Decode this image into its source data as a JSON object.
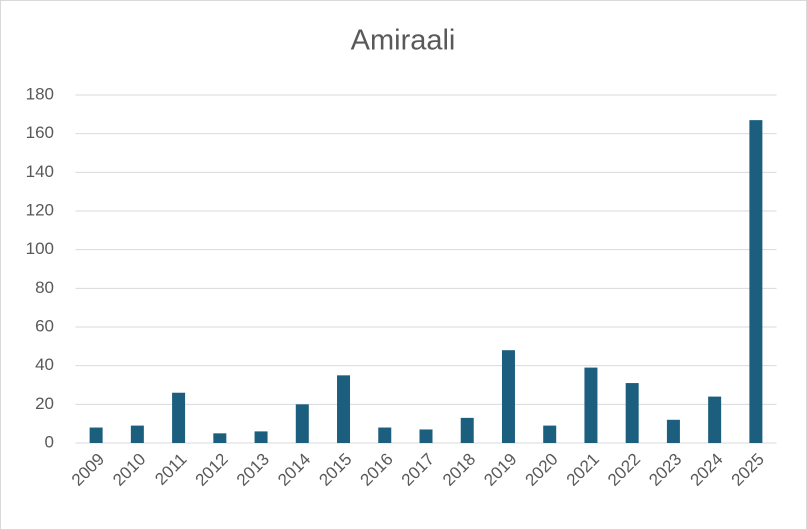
{
  "chart_data": {
    "type": "bar",
    "title": "Amiraali",
    "categories": [
      "2009",
      "2010",
      "2011",
      "2012",
      "2013",
      "2014",
      "2015",
      "2016",
      "2017",
      "2018",
      "2019",
      "2020",
      "2021",
      "2022",
      "2023",
      "2024",
      "2025"
    ],
    "values": [
      8,
      9,
      26,
      5,
      6,
      20,
      35,
      8,
      7,
      13,
      48,
      9,
      39,
      31,
      12,
      24,
      167
    ],
    "color": "#1b5e7e",
    "ylim": [
      0,
      180
    ],
    "yticks": [
      0,
      20,
      40,
      60,
      80,
      100,
      120,
      140,
      160,
      180
    ],
    "grid": true
  }
}
